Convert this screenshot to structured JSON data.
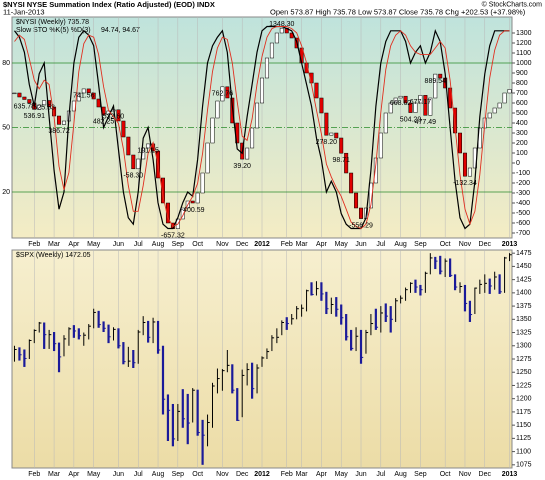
{
  "chart_data": [
    {
      "type": "candlestick",
      "title": "$NYSI NYSE Summation Index (Ratio Adjusted) (EOD) INDX",
      "date": "11-Jan-2013",
      "info": "Open 573.87 High 735.78 Low 573.87 Close 735.78 Chg +202.53 (+37.98%)",
      "credit": "© StockCharts.com",
      "legend": "$NYSI (Weekly) 735.78",
      "up_color": "#ffffff",
      "down_color": "#e00000",
      "categories": [
        null,
        null,
        null,
        null,
        "Feb",
        null,
        null,
        null,
        "Mar",
        null,
        null,
        null,
        "Apr",
        null,
        null,
        null,
        "May",
        null,
        null,
        null,
        null,
        "Jun",
        null,
        null,
        null,
        "Jul",
        null,
        null,
        null,
        "Aug",
        null,
        null,
        null,
        "Sep",
        null,
        null,
        null,
        "Oct",
        null,
        null,
        null,
        null,
        "Nov",
        null,
        null,
        null,
        "Dec",
        null,
        null,
        null,
        "2012",
        null,
        null,
        null,
        null,
        "Feb",
        null,
        null,
        "Mar",
        null,
        null,
        null,
        "Apr",
        null,
        null,
        null,
        "May",
        null,
        null,
        null,
        "Jun",
        null,
        null,
        null,
        "Jul",
        null,
        null,
        null,
        "Aug",
        null,
        null,
        null,
        "Sep",
        null,
        null,
        null,
        null,
        "Oct",
        null,
        null,
        null,
        "Nov",
        null,
        null,
        null,
        "Dec",
        null,
        null,
        null,
        null,
        "2013"
      ],
      "values": [
        700,
        660,
        635,
        600,
        536,
        580,
        625,
        560,
        470,
        386,
        420,
        520,
        620,
        700,
        741,
        700,
        640,
        560,
        482,
        520,
        532,
        420,
        260,
        80,
        -58,
        40,
        150,
        191,
        120,
        -150,
        -400,
        -600,
        -657,
        -560,
        -450,
        -380,
        -400,
        -300,
        -100,
        200,
        450,
        620,
        762,
        650,
        400,
        200,
        39,
        150,
        350,
        600,
        850,
        1050,
        1200,
        1300,
        1348,
        1300,
        1250,
        1150,
        1000,
        900,
        800,
        650,
        500,
        278,
        300,
        250,
        98,
        -100,
        -300,
        -450,
        -556,
        -450,
        -200,
        50,
        300,
        500,
        600,
        650,
        668,
        600,
        504,
        600,
        677,
        477,
        650,
        889,
        850,
        750,
        550,
        300,
        100,
        -132,
        -50,
        150,
        350,
        450,
        500,
        550,
        600,
        700,
        735.78
      ],
      "ylim": [
        -750,
        1460
      ],
      "yticks": [
        -700,
        -600,
        -500,
        -400,
        -300,
        -200,
        -100,
        0,
        100,
        200,
        300,
        400,
        500,
        600,
        700,
        800,
        900,
        1000,
        1100,
        1200,
        1300
      ],
      "annotations": [
        {
          "index": 2,
          "value": 635.78
        },
        {
          "index": 4,
          "value": 536.91
        },
        {
          "index": 6,
          "value": 625.53
        },
        {
          "index": 9,
          "value": 386.72
        },
        {
          "index": 14,
          "value": 741.56
        },
        {
          "index": 18,
          "value": 482.25
        },
        {
          "index": 20,
          "value": 532.6,
          "label": "532.60"
        },
        {
          "index": 24,
          "value": -58.3,
          "label": "-58.30"
        },
        {
          "index": 27,
          "value": 191.15
        },
        {
          "index": 32,
          "value": -657.32
        },
        {
          "index": 36,
          "value": -400.59
        },
        {
          "index": 42,
          "value": 762.76
        },
        {
          "index": 46,
          "value": 39.2,
          "label": "39.20"
        },
        {
          "index": 54,
          "value": 1348.3,
          "label": "1348.30"
        },
        {
          "index": 63,
          "value": 278.2,
          "label": "278.20"
        },
        {
          "index": 66,
          "value": 98.71
        },
        {
          "index": 70,
          "value": -556.29
        },
        {
          "index": 78,
          "value": 668.62
        },
        {
          "index": 80,
          "value": 504.29
        },
        {
          "index": 82,
          "value": 677.17
        },
        {
          "index": 83,
          "value": 477.49
        },
        {
          "index": 85,
          "value": 889.54
        },
        {
          "index": 91,
          "value": -132.34
        }
      ],
      "overlay": {
        "legend": "Slow STO %K(5) %D(3)",
        "legend_values": "94.74, 94.67",
        "ylim": [
          -1.4,
          101.4
        ],
        "yticks": [
          20,
          50,
          80
        ],
        "series": [
          {
            "name": "%K",
            "color": "#000000",
            "values": [
              95,
              92,
              85,
              70,
              60,
              75,
              80,
              55,
              30,
              12,
              20,
              55,
              80,
              92,
              95,
              93,
              88,
              70,
              50,
              55,
              60,
              40,
              20,
              8,
              5,
              20,
              45,
              50,
              35,
              15,
              5,
              3,
              3,
              8,
              15,
              20,
              18,
              35,
              60,
              80,
              88,
              92,
              95,
              85,
              60,
              40,
              38,
              55,
              70,
              85,
              95,
              97,
              97,
              97,
              97,
              96,
              95,
              90,
              80,
              70,
              60,
              45,
              35,
              20,
              25,
              20,
              10,
              5,
              3,
              3,
              3,
              8,
              30,
              60,
              80,
              90,
              95,
              95,
              95,
              90,
              80,
              85,
              88,
              80,
              85,
              95,
              90,
              75,
              50,
              25,
              8,
              3,
              5,
              25,
              55,
              75,
              88,
              95,
              95,
              95,
              95
            ]
          },
          {
            "name": "%D",
            "color": "#e03020",
            "values": [
              90,
              93,
              91,
              82,
              72,
              68,
              72,
              70,
              55,
              32,
              21,
              29,
              52,
              76,
              89,
              93,
              92,
              84,
              69,
              58,
              55,
              52,
              40,
              23,
              11,
              11,
              23,
              38,
              43,
              33,
              18,
              8,
              4,
              5,
              9,
              14,
              18,
              24,
              38,
              58,
              76,
              87,
              92,
              91,
              80,
              62,
              46,
              44,
              54,
              70,
              83,
              92,
              96,
              97,
              97,
              97,
              96,
              94,
              88,
              80,
              70,
              58,
              47,
              33,
              27,
              22,
              18,
              12,
              6,
              4,
              3,
              5,
              14,
              33,
              57,
              77,
              88,
              93,
              95,
              93,
              88,
              85,
              84,
              84,
              84,
              87,
              90,
              87,
              72,
              50,
              28,
              12,
              5,
              11,
              28,
              52,
              73,
              86,
              93,
              95,
              95
            ]
          }
        ]
      }
    },
    {
      "type": "ohlc",
      "legend": "$SPX (Weekly) 1472.05",
      "up_color": "#000000",
      "down_color": "#1a1a9a",
      "categories": [
        null,
        null,
        null,
        null,
        "Feb",
        null,
        null,
        null,
        "Mar",
        null,
        null,
        null,
        "Apr",
        null,
        null,
        null,
        "May",
        null,
        null,
        null,
        null,
        "Jun",
        null,
        null,
        null,
        "Jul",
        null,
        null,
        null,
        "Aug",
        null,
        null,
        null,
        "Sep",
        null,
        null,
        null,
        "Oct",
        null,
        null,
        null,
        null,
        "Nov",
        null,
        null,
        null,
        "Dec",
        null,
        null,
        null,
        "2012",
        null,
        null,
        null,
        null,
        "Feb",
        null,
        null,
        "Mar",
        null,
        null,
        null,
        "Apr",
        null,
        null,
        null,
        "May",
        null,
        null,
        null,
        "Jun",
        null,
        null,
        null,
        "Jul",
        null,
        null,
        null,
        "Aug",
        null,
        null,
        null,
        "Sep",
        null,
        null,
        null,
        null,
        "Oct",
        null,
        null,
        null,
        "Nov",
        null,
        null,
        null,
        "Dec",
        null,
        null,
        null,
        null,
        "2013"
      ],
      "high": [
        1300,
        1297,
        1293,
        1312,
        1331,
        1345,
        1344,
        1330,
        1326,
        1306,
        1320,
        1335,
        1339,
        1333,
        1325,
        1341,
        1370,
        1366,
        1346,
        1340,
        1335,
        1333,
        1307,
        1298,
        1292,
        1330,
        1356,
        1347,
        1353,
        1347,
        1300,
        1208,
        1190,
        1190,
        1218,
        1209,
        1220,
        1217,
        1160,
        1170,
        1230,
        1257,
        1256,
        1292,
        1265,
        1220,
        1255,
        1267,
        1268,
        1265,
        1280,
        1295,
        1320,
        1333,
        1348,
        1354,
        1360,
        1375,
        1378,
        1406,
        1420,
        1422,
        1420,
        1402,
        1391,
        1392,
        1378,
        1360,
        1330,
        1335,
        1330,
        1330,
        1360,
        1370,
        1375,
        1380,
        1375,
        1390,
        1395,
        1410,
        1420,
        1425,
        1415,
        1440,
        1475,
        1468,
        1470,
        1465,
        1465,
        1435,
        1420,
        1415,
        1385,
        1410,
        1425,
        1435,
        1427,
        1440,
        1435,
        1468,
        1475
      ],
      "low": [
        1270,
        1272,
        1260,
        1275,
        1305,
        1325,
        1294,
        1294,
        1290,
        1250,
        1280,
        1300,
        1315,
        1312,
        1300,
        1312,
        1333,
        1334,
        1326,
        1305,
        1310,
        1295,
        1265,
        1260,
        1258,
        1266,
        1320,
        1306,
        1305,
        1285,
        1170,
        1120,
        1110,
        1120,
        1145,
        1114,
        1155,
        1130,
        1075,
        1110,
        1145,
        1210,
        1215,
        1250,
        1210,
        1158,
        1165,
        1225,
        1200,
        1210,
        1260,
        1275,
        1290,
        1305,
        1320,
        1330,
        1340,
        1350,
        1355,
        1365,
        1395,
        1395,
        1385,
        1360,
        1360,
        1355,
        1340,
        1310,
        1291,
        1290,
        1266,
        1285,
        1320,
        1330,
        1325,
        1345,
        1325,
        1345,
        1380,
        1385,
        1400,
        1400,
        1395,
        1400,
        1435,
        1445,
        1435,
        1430,
        1430,
        1405,
        1400,
        1365,
        1345,
        1360,
        1398,
        1400,
        1398,
        1406,
        1398,
        1400,
        1460
      ],
      "close": [
        1293,
        1283,
        1276,
        1310,
        1329,
        1343,
        1321,
        1321,
        1304,
        1279,
        1313,
        1332,
        1328,
        1319,
        1320,
        1337,
        1363,
        1340,
        1333,
        1317,
        1331,
        1300,
        1270,
        1271,
        1268,
        1326,
        1344,
        1316,
        1345,
        1292,
        1199,
        1178,
        1124,
        1176,
        1162,
        1154,
        1216,
        1136,
        1131,
        1155,
        1224,
        1238,
        1253,
        1263,
        1216,
        1159,
        1244,
        1255,
        1219,
        1258,
        1277,
        1289,
        1315,
        1316,
        1344,
        1342,
        1351,
        1370,
        1371,
        1404,
        1397,
        1408,
        1398,
        1370,
        1378,
        1369,
        1353,
        1317,
        1295,
        1318,
        1278,
        1325,
        1342,
        1335,
        1362,
        1356,
        1350,
        1385,
        1390,
        1406,
        1418,
        1411,
        1406,
        1437,
        1466,
        1460,
        1441,
        1460,
        1433,
        1411,
        1412,
        1380,
        1359,
        1409,
        1416,
        1418,
        1413,
        1430,
        1402,
        1466,
        1472
      ],
      "ylim": [
        1069,
        1481
      ],
      "yticks": [
        1075,
        1100,
        1125,
        1150,
        1175,
        1200,
        1225,
        1250,
        1275,
        1300,
        1325,
        1350,
        1375,
        1400,
        1425,
        1450,
        1475
      ]
    }
  ]
}
